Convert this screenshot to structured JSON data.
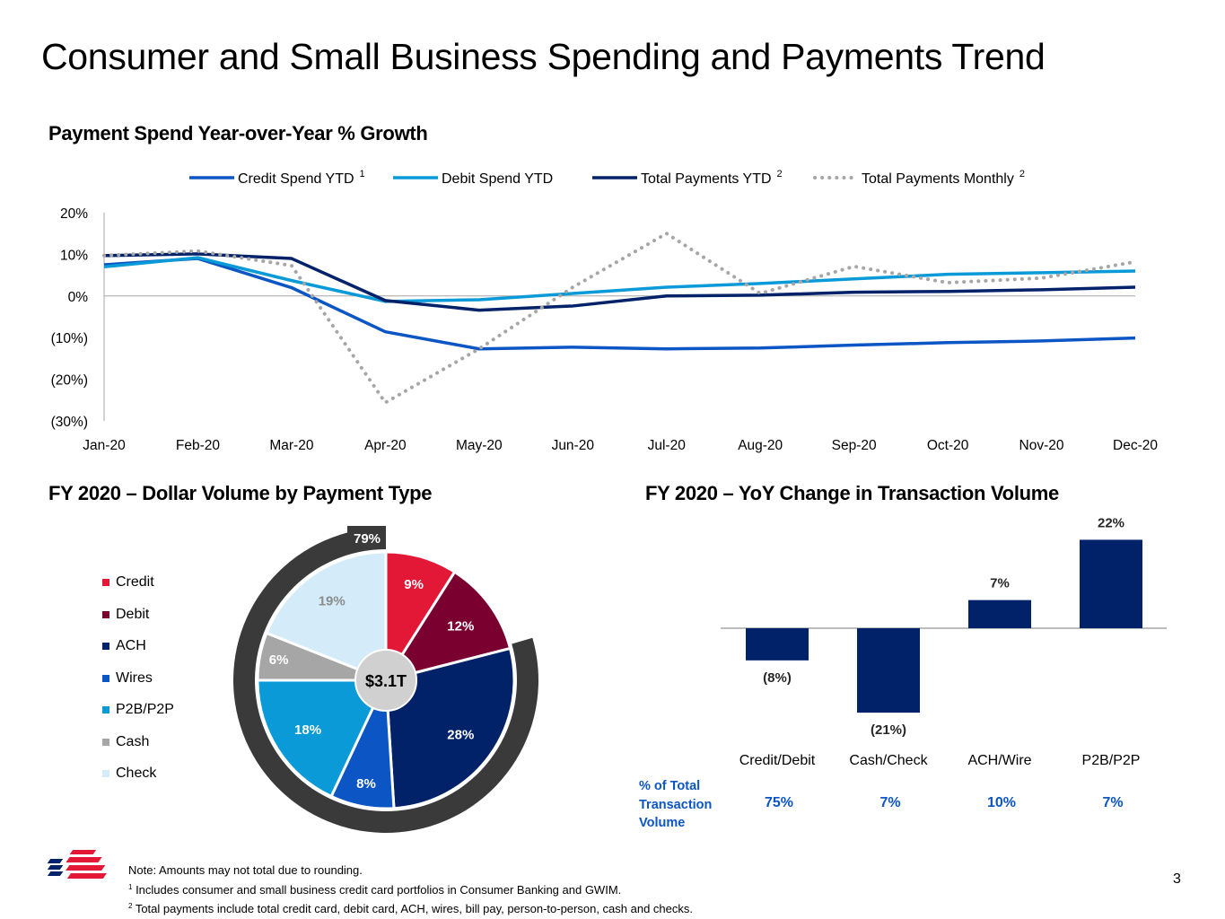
{
  "page": {
    "title": "Consumer and Small Business Spending and Payments Trend",
    "page_number": "3"
  },
  "line_section": {
    "title": "Payment Spend Year-over-Year % Growth"
  },
  "pie_section": {
    "title": "FY 2020 – Dollar Volume by Payment Type"
  },
  "bar_section": {
    "title": "FY 2020 – YoY Change in Transaction Volume"
  },
  "chart_data": [
    {
      "type": "line",
      "title": "Payment Spend Year-over-Year % Growth",
      "xlabel": "",
      "ylabel": "",
      "x": [
        "Jan-20",
        "Feb-20",
        "Mar-20",
        "Apr-20",
        "May-20",
        "Jun-20",
        "Jul-20",
        "Aug-20",
        "Sep-20",
        "Oct-20",
        "Nov-20",
        "Dec-20"
      ],
      "ylim": [
        -30,
        20
      ],
      "yticks": [
        20,
        10,
        0,
        -10,
        -20,
        -30
      ],
      "ytick_labels": [
        "20%",
        "10%",
        "0%",
        "(10%)",
        "(20%)",
        "(30%)"
      ],
      "grid": false,
      "zero_line": true,
      "legend_position": "top",
      "series": [
        {
          "name": "Credit Spend YTD",
          "superscript": "1",
          "color": "#0b55c4",
          "style": "solid",
          "values": [
            7.5,
            9.0,
            2.0,
            -8.6,
            -12.7,
            -12.3,
            -12.7,
            -12.5,
            -11.8,
            -11.2,
            -10.8,
            -10.1
          ]
        },
        {
          "name": "Debit Spend YTD",
          "superscript": "",
          "color": "#0a9ad8",
          "style": "solid",
          "values": [
            7.0,
            9.2,
            3.7,
            -1.3,
            -0.9,
            0.6,
            2.1,
            3.0,
            4.1,
            5.2,
            5.6,
            6.0
          ]
        },
        {
          "name": "Total Payments YTD",
          "superscript": "2",
          "color": "#012169",
          "style": "solid",
          "values": [
            9.7,
            10.1,
            9.0,
            -1.1,
            -3.4,
            -2.4,
            0.0,
            0.2,
            0.9,
            1.1,
            1.5,
            2.1
          ]
        },
        {
          "name": "Total Payments Monthly",
          "superscript": "2",
          "color": "#a6a6a6",
          "style": "dotted",
          "values": [
            9.7,
            10.8,
            7.3,
            -25.6,
            -12.7,
            2.1,
            15.0,
            0.6,
            7.1,
            3.2,
            4.3,
            8.2
          ]
        }
      ]
    },
    {
      "type": "pie",
      "title": "FY 2020 – Dollar Volume by Payment Type",
      "center_label": "$3.1T",
      "outer_arc_label": "79%",
      "outer_arc_covers": [
        "ACH",
        "Wires",
        "P2B/P2P",
        "Cash",
        "Check"
      ],
      "legend_position": "left",
      "slices": [
        {
          "label": "Credit",
          "value": 9,
          "display": "9%",
          "color": "#e31837",
          "text_color": "#ffffff"
        },
        {
          "label": "Debit",
          "value": 12,
          "display": "12%",
          "color": "#7a0030",
          "text_color": "#ffffff"
        },
        {
          "label": "ACH",
          "value": 28,
          "display": "28%",
          "color": "#012169",
          "text_color": "#ffffff"
        },
        {
          "label": "Wires",
          "value": 8,
          "display": "8%",
          "color": "#0b55c4",
          "text_color": "#ffffff"
        },
        {
          "label": "P2B/P2P",
          "value": 18,
          "display": "18%",
          "color": "#0a9ad8",
          "text_color": "#ffffff"
        },
        {
          "label": "Cash",
          "value": 6,
          "display": "6%",
          "color": "#a6a6a6",
          "text_color": "#ffffff"
        },
        {
          "label": "Check",
          "value": 19,
          "display": "19%",
          "color": "#d4ecf9",
          "text_color": "#8c8c8c"
        }
      ]
    },
    {
      "type": "bar",
      "title": "FY 2020 – YoY Change in Transaction Volume",
      "categories": [
        "Credit/Debit",
        "Cash/Check",
        "ACH/Wire",
        "P2B/P2P"
      ],
      "values": [
        -8,
        -21,
        7,
        22
      ],
      "value_labels": [
        "(8%)",
        "(21%)",
        "7%",
        "22%"
      ],
      "bar_color": "#012169",
      "xlabel": "",
      "ylabel": "",
      "ylim": [
        -21,
        22
      ],
      "table_row": {
        "label": "% of Total Transaction Volume",
        "values": [
          "75%",
          "7%",
          "10%",
          "7%"
        ],
        "color": "#0b55c4"
      }
    }
  ],
  "footnotes": {
    "note": "Note: Amounts may not total due to rounding.",
    "fn1_marker": "1",
    "fn1": " Includes consumer and small business credit card portfolios in Consumer Banking and GWIM.",
    "fn2_marker": "2",
    "fn2": " Total payments include total credit card, debit card, ACH, wires, bill pay, person-to-person, cash and checks."
  },
  "logo": {
    "icon": "bank-flag-logo-icon",
    "colors": [
      "#012169",
      "#e31837"
    ]
  }
}
